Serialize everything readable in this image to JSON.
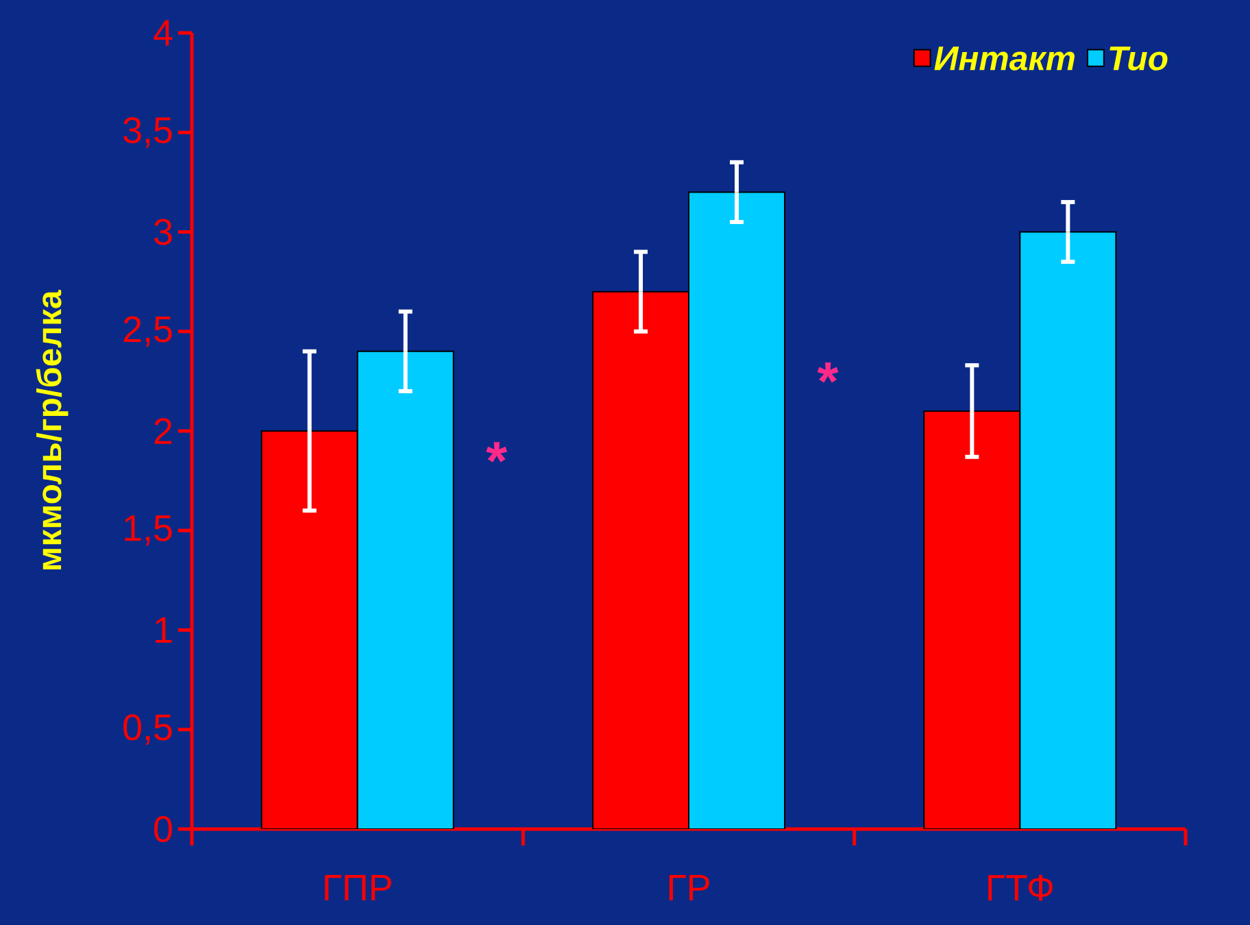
{
  "chart_data": {
    "type": "bar",
    "ylabel": "мкмоль/гр/белка",
    "categories": [
      "ГПР",
      "ГР",
      "ГТФ"
    ],
    "series": [
      {
        "name": "Интакт",
        "color": "#ff0000",
        "values": [
          2.0,
          2.7,
          2.1
        ],
        "errors": [
          0.4,
          0.2,
          0.23
        ]
      },
      {
        "name": "Тио",
        "color": "#00ccff",
        "values": [
          2.4,
          3.2,
          3.0
        ],
        "errors": [
          0.2,
          0.15,
          0.15
        ]
      }
    ],
    "ylim": [
      0,
      4
    ],
    "yticks": [
      0,
      {
        "value": 0.5,
        "label": "0,5"
      },
      1,
      {
        "value": 1.5,
        "label": "1,5"
      },
      2,
      {
        "value": 2.5,
        "label": "2,5"
      },
      3,
      {
        "value": 3.5,
        "label": "3,5"
      },
      4
    ],
    "annotations": [
      {
        "text": "*",
        "x": "ГПР",
        "y": 1.85
      },
      {
        "text": "*",
        "x": "ГР",
        "y": 2.25
      }
    ],
    "legend": "top right",
    "grid": false
  }
}
